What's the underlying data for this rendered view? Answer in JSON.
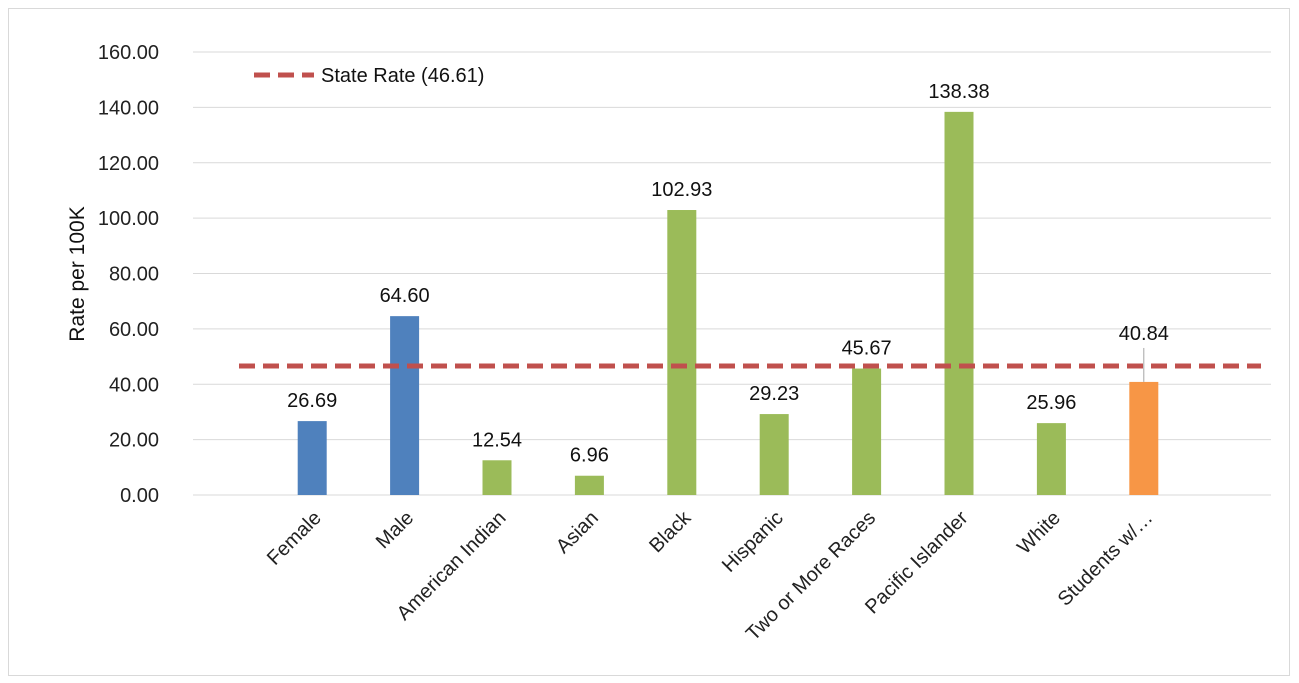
{
  "chart_data": {
    "type": "bar",
    "title": "",
    "xlabel": "",
    "ylabel": "Rate per 100K",
    "ylim": [
      0,
      160
    ],
    "ytick_step": 20,
    "ytick_labels": [
      "0.00",
      "20.00",
      "40.00",
      "60.00",
      "80.00",
      "100.00",
      "120.00",
      "140.00",
      "160.00"
    ],
    "grid": "horizontal",
    "legend_position": "top-left",
    "categories": [
      "Female",
      "Male",
      "American Indian",
      "Asian",
      "Black",
      "Hispanic",
      "Two or More Races",
      "Pacific Islander",
      "White",
      "Students w/…"
    ],
    "values": [
      26.69,
      64.6,
      12.54,
      6.96,
      102.93,
      29.23,
      45.67,
      138.38,
      25.96,
      40.84
    ],
    "value_labels": [
      "26.69",
      "64.60",
      "12.54",
      "6.96",
      "102.93",
      "29.23",
      "45.67",
      "138.38",
      "25.96",
      "40.84"
    ],
    "bar_colors": [
      "#4f81bd",
      "#4f81bd",
      "#9bbb59",
      "#9bbb59",
      "#9bbb59",
      "#9bbb59",
      "#9bbb59",
      "#9bbb59",
      "#9bbb59",
      "#f79646"
    ],
    "reference_line": {
      "label": "State Rate (46.61)",
      "value": 46.61,
      "color": "#c0504d",
      "style": "dashed"
    }
  }
}
